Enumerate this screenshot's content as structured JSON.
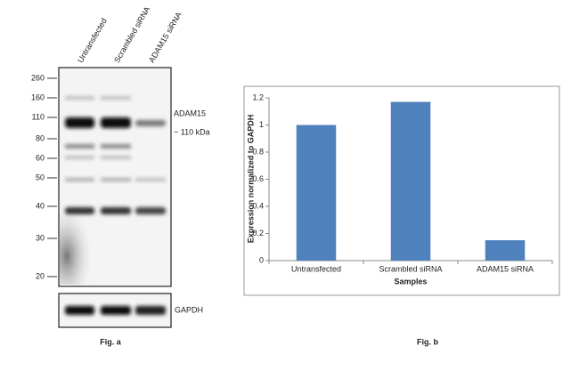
{
  "western_blot": {
    "lanes": [
      "Untransfected",
      "Scrambled siRNA",
      "ADAM15 siRNA"
    ],
    "markers": [
      260,
      160,
      110,
      80,
      60,
      50,
      40,
      30,
      20
    ],
    "target_label": "ADAM15",
    "target_size": "~ 110 kDa",
    "control_label": "GAPDH",
    "caption": "Fig. a"
  },
  "chart_data": {
    "type": "bar",
    "caption": "Fig. b",
    "categories": [
      "Untransfected",
      "Scrambled siRNA",
      "ADAM15 siRNA"
    ],
    "values": [
      1,
      1.17,
      0.15
    ],
    "color": "#4f81bd",
    "xlabel": "Samples",
    "ylabel": "Expression normalized to GAPDH",
    "ylim": [
      0,
      1.2
    ],
    "yticks": [
      0,
      0.2,
      0.4,
      0.6,
      0.8,
      1,
      1.2
    ],
    "grid": false
  }
}
